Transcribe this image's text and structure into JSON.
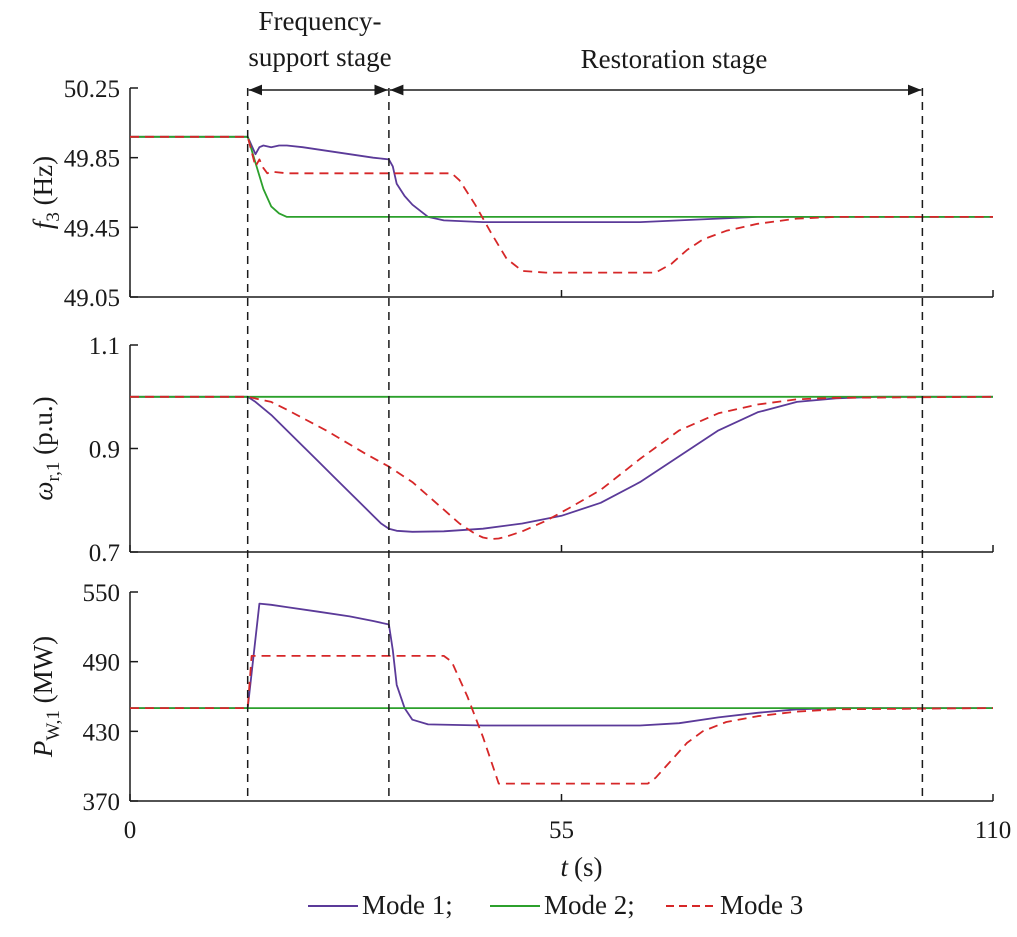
{
  "chart_data": {
    "type": "line",
    "xlabel": "t",
    "xlabel_unit": "(s)",
    "xlim": [
      0,
      110
    ],
    "xticks": [
      "0",
      "55",
      "110"
    ],
    "stage_marks": [
      15,
      33,
      101
    ],
    "stages": [
      {
        "label_line1": "Frequency-",
        "label_line2": "support stage",
        "from": 15,
        "to": 33
      },
      {
        "label": "Restoration stage",
        "from": 33,
        "to": 101
      }
    ],
    "legend": {
      "placement": "bottom",
      "entries": [
        {
          "label": "Mode 1;",
          "color": "#5b3a99",
          "dash": "solid"
        },
        {
          "label": "Mode 2;",
          "color": "#2ca02c",
          "dash": "solid"
        },
        {
          "label": "Mode 3",
          "color": "#d62728",
          "dash": "dashed"
        }
      ]
    },
    "panels": [
      {
        "ylabel_main": "f",
        "ylabel_sub": "3",
        "ylabel_unit": "(Hz)",
        "ylim": [
          49.05,
          50.25
        ],
        "yticks": [
          "50.25",
          "49.85",
          "49.45",
          "49.05"
        ],
        "series": [
          {
            "name": "Mode 1",
            "points": [
              [
                0,
                49.97
              ],
              [
                15,
                49.97
              ],
              [
                15.5,
                49.92
              ],
              [
                16,
                49.87
              ],
              [
                16.5,
                49.91
              ],
              [
                17,
                49.92
              ],
              [
                18,
                49.91
              ],
              [
                19,
                49.92
              ],
              [
                20,
                49.92
              ],
              [
                22,
                49.91
              ],
              [
                25,
                49.89
              ],
              [
                28,
                49.87
              ],
              [
                31,
                49.85
              ],
              [
                33,
                49.84
              ],
              [
                33.5,
                49.8
              ],
              [
                34,
                49.7
              ],
              [
                35,
                49.63
              ],
              [
                36,
                49.58
              ],
              [
                38,
                49.51
              ],
              [
                40,
                49.49
              ],
              [
                45,
                49.48
              ],
              [
                55,
                49.48
              ],
              [
                65,
                49.48
              ],
              [
                70,
                49.49
              ],
              [
                75,
                49.5
              ],
              [
                80,
                49.51
              ],
              [
                90,
                49.51
              ],
              [
                110,
                49.51
              ]
            ]
          },
          {
            "name": "Mode 2",
            "points": [
              [
                0,
                49.97
              ],
              [
                15,
                49.97
              ],
              [
                16,
                49.82
              ],
              [
                17,
                49.67
              ],
              [
                18,
                49.57
              ],
              [
                19,
                49.53
              ],
              [
                20,
                49.51
              ],
              [
                22,
                49.51
              ],
              [
                110,
                49.51
              ]
            ]
          },
          {
            "name": "Mode 3",
            "points": [
              [
                0,
                49.97
              ],
              [
                15,
                49.97
              ],
              [
                16,
                49.8
              ],
              [
                16.5,
                49.84
              ],
              [
                17,
                49.79
              ],
              [
                17.5,
                49.76
              ],
              [
                18,
                49.77
              ],
              [
                20,
                49.76
              ],
              [
                30,
                49.76
              ],
              [
                38,
                49.76
              ],
              [
                41,
                49.76
              ],
              [
                42,
                49.72
              ],
              [
                44,
                49.58
              ],
              [
                46,
                49.42
              ],
              [
                48,
                49.27
              ],
              [
                50,
                49.2
              ],
              [
                53,
                49.19
              ],
              [
                60,
                49.19
              ],
              [
                67,
                49.19
              ],
              [
                69,
                49.24
              ],
              [
                71,
                49.32
              ],
              [
                73,
                49.38
              ],
              [
                76,
                49.43
              ],
              [
                80,
                49.47
              ],
              [
                85,
                49.5
              ],
              [
                90,
                49.51
              ],
              [
                110,
                49.51
              ]
            ]
          }
        ]
      },
      {
        "ylabel_main": "ω",
        "ylabel_sub": "r,1",
        "ylabel_unit": "(p.u.)",
        "ylim": [
          0.7,
          1.1
        ],
        "yticks": [
          "1.1",
          "0.9",
          "0.7"
        ],
        "series": [
          {
            "name": "Mode 1",
            "points": [
              [
                0,
                1.0
              ],
              [
                15,
                1.0
              ],
              [
                16,
                0.99
              ],
              [
                18,
                0.965
              ],
              [
                20,
                0.935
              ],
              [
                22,
                0.905
              ],
              [
                24,
                0.875
              ],
              [
                26,
                0.845
              ],
              [
                28,
                0.815
              ],
              [
                30,
                0.785
              ],
              [
                31,
                0.77
              ],
              [
                32,
                0.755
              ],
              [
                33,
                0.745
              ],
              [
                34,
                0.741
              ],
              [
                36,
                0.739
              ],
              [
                40,
                0.74
              ],
              [
                45,
                0.745
              ],
              [
                50,
                0.755
              ],
              [
                55,
                0.77
              ],
              [
                60,
                0.795
              ],
              [
                65,
                0.835
              ],
              [
                70,
                0.885
              ],
              [
                75,
                0.935
              ],
              [
                80,
                0.97
              ],
              [
                85,
                0.99
              ],
              [
                90,
                0.997
              ],
              [
                95,
                1.0
              ],
              [
                110,
                1.0
              ]
            ]
          },
          {
            "name": "Mode 2",
            "points": [
              [
                0,
                1.0
              ],
              [
                110,
                1.0
              ]
            ]
          },
          {
            "name": "Mode 3",
            "points": [
              [
                0,
                1.0
              ],
              [
                15,
                1.0
              ],
              [
                18,
                0.99
              ],
              [
                20,
                0.975
              ],
              [
                25,
                0.935
              ],
              [
                30,
                0.89
              ],
              [
                33,
                0.865
              ],
              [
                36,
                0.835
              ],
              [
                39,
                0.795
              ],
              [
                42,
                0.755
              ],
              [
                44,
                0.735
              ],
              [
                45,
                0.728
              ],
              [
                46,
                0.725
              ],
              [
                47,
                0.726
              ],
              [
                48,
                0.73
              ],
              [
                50,
                0.74
              ],
              [
                53,
                0.76
              ],
              [
                56,
                0.785
              ],
              [
                60,
                0.82
              ],
              [
                65,
                0.88
              ],
              [
                70,
                0.935
              ],
              [
                75,
                0.968
              ],
              [
                80,
                0.985
              ],
              [
                85,
                0.995
              ],
              [
                90,
                0.998
              ],
              [
                110,
                1.0
              ]
            ]
          }
        ]
      },
      {
        "ylabel_main": "P",
        "ylabel_sub": "W,1",
        "ylabel_unit": "(MW)",
        "ylim": [
          370,
          550
        ],
        "yticks": [
          "550",
          "490",
          "430",
          "370"
        ],
        "series": [
          {
            "name": "Mode 1",
            "points": [
              [
                0,
                450
              ],
              [
                15,
                450
              ],
              [
                16.5,
                540
              ],
              [
                18,
                539
              ],
              [
                20,
                537
              ],
              [
                24,
                533
              ],
              [
                28,
                529
              ],
              [
                31,
                525
              ],
              [
                33,
                522
              ],
              [
                33.5,
                500
              ],
              [
                34,
                470
              ],
              [
                35,
                450
              ],
              [
                36,
                440
              ],
              [
                38,
                436
              ],
              [
                45,
                435
              ],
              [
                55,
                435
              ],
              [
                65,
                435
              ],
              [
                70,
                437
              ],
              [
                75,
                442
              ],
              [
                80,
                446
              ],
              [
                85,
                449
              ],
              [
                90,
                450
              ],
              [
                110,
                450
              ]
            ]
          },
          {
            "name": "Mode 2",
            "points": [
              [
                0,
                450
              ],
              [
                110,
                450
              ]
            ]
          },
          {
            "name": "Mode 3",
            "points": [
              [
                0,
                450
              ],
              [
                15,
                450
              ],
              [
                15.5,
                495
              ],
              [
                20,
                495
              ],
              [
                30,
                495
              ],
              [
                37,
                495
              ],
              [
                40,
                495
              ],
              [
                41,
                490
              ],
              [
                43,
                460
              ],
              [
                45,
                425
              ],
              [
                46,
                405
              ],
              [
                47,
                385
              ],
              [
                50,
                385
              ],
              [
                60,
                385
              ],
              [
                66,
                385
              ],
              [
                67,
                390
              ],
              [
                69,
                405
              ],
              [
                71,
                420
              ],
              [
                73,
                430
              ],
              [
                76,
                438
              ],
              [
                80,
                443
              ],
              [
                85,
                447
              ],
              [
                90,
                449
              ],
              [
                110,
                450
              ]
            ]
          }
        ]
      }
    ]
  }
}
